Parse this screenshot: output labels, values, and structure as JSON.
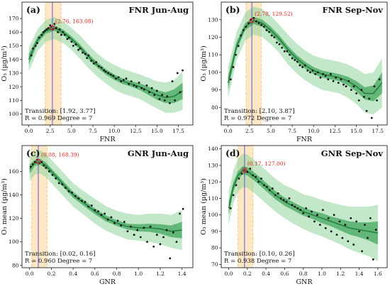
{
  "colors": {
    "band": "#fbc97d",
    "outer_ci": "#8fd49c",
    "inner_ci": "#2f9e4f",
    "fit_line": "#1f7a3a",
    "points": "#111111",
    "vline": "#5b5bd6",
    "peak_marker": "#e0231a"
  },
  "chart_data": [
    {
      "type": "scatter",
      "label": "(a)",
      "title": "FNR Jun-Aug",
      "xlabel": "FNR",
      "ylabel": "O₃ (µg/m³)",
      "xlim": [
        -0.8,
        19.2
      ],
      "ylim": [
        92,
        182
      ],
      "xticks": [
        0.0,
        2.5,
        5.0,
        7.5,
        10.0,
        12.5,
        15.0,
        17.5
      ],
      "xtick_labels": [
        "0.0",
        "2.5",
        "5.0",
        "7.5",
        "10.0",
        "12.5",
        "15.0",
        "17.5"
      ],
      "yticks": [
        100,
        110,
        120,
        130,
        140,
        150,
        160,
        170
      ],
      "ytick_labels": [
        "100",
        "110",
        "120",
        "130",
        "140",
        "150",
        "160",
        "170"
      ],
      "transition_range": [
        1.92,
        3.77
      ],
      "peak": [
        2.76,
        163.08
      ],
      "peak_label": "(2.76, 163.08)",
      "transition_text": "Transition: [1.92, 3.77]",
      "r_text": "R = 0.969 Degree = 7",
      "fit": {
        "x": [
          0,
          1,
          2,
          3,
          4,
          5,
          6,
          7,
          8,
          9,
          10,
          11,
          12,
          13,
          14,
          15,
          16,
          17,
          18
        ],
        "y": [
          140,
          154,
          161,
          163,
          160,
          155,
          149,
          142,
          136,
          131,
          127,
          124,
          122,
          120,
          117,
          114,
          112,
          113,
          117
        ]
      },
      "ci_inner": [
        4,
        2.5,
        2,
        2,
        2,
        2,
        2,
        2,
        2,
        2,
        2,
        2,
        2,
        2.5,
        3,
        3.5,
        4,
        5,
        6
      ],
      "ci_outer": [
        9,
        8,
        8,
        8,
        8,
        8,
        8.5,
        8.5,
        8.5,
        8.5,
        9,
        9,
        9,
        9,
        9.5,
        10,
        11,
        12,
        14
      ],
      "points": {
        "x": [
          0.3,
          0.5,
          0.8,
          1.0,
          1.2,
          1.5,
          1.7,
          1.9,
          2.1,
          2.3,
          2.5,
          2.6,
          2.8,
          3.0,
          3.2,
          3.4,
          3.6,
          3.8,
          4.0,
          4.2,
          4.5,
          4.7,
          5.0,
          5.2,
          5.5,
          5.8,
          6.0,
          6.3,
          6.6,
          6.8,
          7.0,
          7.3,
          7.6,
          7.9,
          8.2,
          8.5,
          8.8,
          9.0,
          9.3,
          9.6,
          9.9,
          10.2,
          10.5,
          10.8,
          11.1,
          11.4,
          11.7,
          12.0,
          12.3,
          12.6,
          12.9,
          13.2,
          13.5,
          13.8,
          14.1,
          14.4,
          14.7,
          15.0,
          15.3,
          15.6,
          15.9,
          16.2,
          16.5,
          16.8,
          17.1,
          17.4,
          17.7,
          18.0
        ],
        "y": [
          143,
          148,
          150,
          152,
          156,
          158,
          160,
          161,
          162,
          163,
          165,
          164,
          162,
          166,
          163,
          160,
          162,
          158,
          160,
          158,
          155,
          156,
          153,
          150,
          151,
          147,
          148,
          145,
          144,
          141,
          143,
          139,
          137,
          138,
          135,
          134,
          132,
          131,
          130,
          129,
          128,
          126,
          127,
          124,
          125,
          126,
          122,
          124,
          121,
          120,
          123,
          119,
          118,
          121,
          116,
          119,
          114,
          117,
          111,
          114,
          110,
          113,
          108,
          124,
          110,
          130,
          116,
          132
        ]
      }
    },
    {
      "type": "scatter",
      "label": "(b)",
      "title": "FNR Sep-Nov",
      "xlabel": "FNR",
      "ylabel": "O₃ (µg/m³)",
      "xlim": [
        -0.8,
        18.6
      ],
      "ylim": [
        70,
        140
      ],
      "xticks": [
        0.0,
        2.5,
        5.0,
        7.5,
        10.0,
        12.5,
        15.0,
        17.5
      ],
      "xtick_labels": [
        "0.0",
        "2.5",
        "5.0",
        "7.5",
        "10.0",
        "12.5",
        "15.0",
        "17.5"
      ],
      "yticks": [
        80,
        90,
        100,
        110,
        120,
        130
      ],
      "ytick_labels": [
        "80",
        "90",
        "100",
        "110",
        "120",
        "130"
      ],
      "transition_range": [
        2.1,
        3.87
      ],
      "peak": [
        2.78,
        129.52
      ],
      "peak_label": "(2.78, 129.52)",
      "transition_text": "Transition: [2.10, 3.87]",
      "r_text": "R = 0.972 Degree = 7",
      "fit": {
        "x": [
          0,
          1,
          2,
          3,
          4,
          5,
          6,
          7,
          8,
          9,
          10,
          11,
          12,
          13,
          14,
          15,
          16,
          17,
          18
        ],
        "y": [
          94,
          115,
          126,
          129.5,
          128,
          124,
          119,
          113,
          108,
          104,
          101,
          99,
          98,
          97,
          95,
          92,
          88,
          88,
          94
        ]
      },
      "ci_inner": [
        4,
        2.5,
        2,
        2,
        2,
        2,
        2,
        2,
        2,
        2,
        2,
        2,
        2,
        2,
        2.5,
        3,
        3.5,
        4.5,
        6
      ],
      "ci_outer": [
        9,
        8,
        8,
        8,
        8,
        8,
        8,
        8.5,
        8.5,
        8.5,
        8.5,
        9,
        9,
        9,
        9.5,
        10,
        11,
        12,
        14
      ],
      "points": {
        "x": [
          0.3,
          0.6,
          0.9,
          1.2,
          1.5,
          1.8,
          2.1,
          2.4,
          2.7,
          3.0,
          3.3,
          3.6,
          3.9,
          4.2,
          4.5,
          4.8,
          5.1,
          5.4,
          5.7,
          6.0,
          6.3,
          6.6,
          6.9,
          7.2,
          7.5,
          7.8,
          8.1,
          8.4,
          8.7,
          9.0,
          9.3,
          9.6,
          9.9,
          10.2,
          10.5,
          10.8,
          11.1,
          11.4,
          11.7,
          12.0,
          12.3,
          12.6,
          12.9,
          13.2,
          13.5,
          13.8,
          14.1,
          14.4,
          14.7,
          15.0,
          15.3,
          15.6,
          15.9,
          16.2,
          16.5,
          16.8,
          17.1,
          17.4,
          17.7
        ],
        "y": [
          96,
          103,
          110,
          115,
          121,
          124,
          126,
          128,
          130,
          131,
          129,
          128,
          127,
          126,
          124,
          123,
          121,
          120,
          117,
          116,
          114,
          112,
          112,
          110,
          108,
          107,
          106,
          104,
          103,
          104,
          101,
          100,
          101,
          99,
          100,
          97,
          99,
          98,
          96,
          99,
          95,
          97,
          94,
          96,
          93,
          92,
          95,
          90,
          92,
          88,
          84,
          90,
          86,
          78,
          85,
          74,
          92,
          84,
          96
        ]
      }
    },
    {
      "type": "scatter",
      "label": "(c)",
      "title": "GNR Jun-Aug",
      "xlabel": "GNR",
      "ylabel": "O₃ mean (µg/m³)",
      "xlim": [
        -0.07,
        1.5
      ],
      "ylim": [
        78,
        182
      ],
      "xticks": [
        0.0,
        0.2,
        0.4,
        0.6,
        0.8,
        1.0,
        1.2,
        1.4
      ],
      "xtick_labels": [
        "0.0",
        "0.2",
        "0.4",
        "0.6",
        "0.8",
        "1.0",
        "1.2",
        "1.4"
      ],
      "yticks": [
        80,
        100,
        120,
        140,
        160
      ],
      "ytick_labels": [
        "80",
        "100",
        "120",
        "140",
        "160"
      ],
      "transition_range": [
        0.02,
        0.16
      ],
      "peak": [
        0.08,
        168.39
      ],
      "peak_label": "(0.08, 168.39)",
      "transition_text": "Transition: [0.02, 0.16]",
      "r_text": "R = 0.960 Degree = 7",
      "fit": {
        "x": [
          0.0,
          0.05,
          0.1,
          0.15,
          0.2,
          0.3,
          0.4,
          0.5,
          0.6,
          0.7,
          0.8,
          0.9,
          1.0,
          1.1,
          1.2,
          1.3,
          1.4
        ],
        "y": [
          162,
          167.5,
          168,
          165,
          160,
          150,
          140,
          133,
          126,
          120,
          116,
          113,
          112,
          112,
          111,
          109,
          110
        ]
      },
      "ci_inner": [
        4,
        2.5,
        2.5,
        2.5,
        2.5,
        2.5,
        2.5,
        2.5,
        2.5,
        2.5,
        2.5,
        2.5,
        3,
        3.5,
        4,
        5,
        7
      ],
      "ci_outer": [
        10,
        10,
        10,
        10,
        10,
        10,
        10,
        10,
        10.5,
        10.5,
        10.5,
        11,
        11,
        12,
        13,
        14,
        17
      ],
      "points": {
        "x": [
          0.01,
          0.03,
          0.05,
          0.07,
          0.09,
          0.11,
          0.13,
          0.15,
          0.18,
          0.21,
          0.24,
          0.27,
          0.3,
          0.33,
          0.36,
          0.39,
          0.42,
          0.45,
          0.48,
          0.51,
          0.54,
          0.57,
          0.6,
          0.63,
          0.66,
          0.69,
          0.72,
          0.75,
          0.78,
          0.81,
          0.84,
          0.87,
          0.9,
          0.93,
          0.96,
          0.99,
          1.02,
          1.05,
          1.08,
          1.11,
          1.14,
          1.17,
          1.2,
          1.23,
          1.26,
          1.29,
          1.32,
          1.35,
          1.38,
          1.41
        ],
        "y": [
          164,
          166,
          168,
          170,
          167,
          168,
          165,
          163,
          160,
          157,
          154,
          150,
          149,
          146,
          143,
          142,
          139,
          137,
          135,
          134,
          130,
          131,
          127,
          126,
          123,
          124,
          119,
          121,
          116,
          118,
          114,
          117,
          109,
          113,
          106,
          110,
          104,
          112,
          100,
          113,
          96,
          106,
          98,
          104,
          110,
          86,
          108,
          100,
          124,
          128
        ]
      }
    },
    {
      "type": "scatter",
      "label": "(d)",
      "title": "GNR Sep-Nov",
      "xlabel": "GNR",
      "ylabel": "O₃ mean (µg/m³)",
      "xlim": [
        -0.08,
        1.7
      ],
      "ylim": [
        68,
        142
      ],
      "xticks": [
        0.0,
        0.2,
        0.4,
        0.6,
        0.8,
        1.0,
        1.2,
        1.4,
        1.6
      ],
      "xtick_labels": [
        "0.0",
        "0.2",
        "0.4",
        "0.6",
        "0.8",
        "1.0",
        "1.2",
        "1.4",
        "1.6"
      ],
      "yticks": [
        70,
        80,
        90,
        100,
        110,
        120,
        130,
        140
      ],
      "ytick_labels": [
        "70",
        "80",
        "90",
        "100",
        "110",
        "120",
        "130",
        "140"
      ],
      "transition_range": [
        0.1,
        0.26
      ],
      "peak": [
        0.17,
        127.0
      ],
      "peak_label": "(0.17, 127.00)",
      "transition_text": "Transition: [0.10, 0.26]",
      "r_text": "R = 0.938 Degree = 7",
      "fit": {
        "x": [
          0.0,
          0.05,
          0.1,
          0.15,
          0.2,
          0.3,
          0.4,
          0.5,
          0.6,
          0.7,
          0.8,
          0.9,
          1.0,
          1.1,
          1.2,
          1.3,
          1.4,
          1.5,
          1.6
        ],
        "y": [
          104,
          117,
          124,
          127,
          126.5,
          122,
          117,
          112,
          108,
          105,
          102,
          100,
          98,
          96,
          94,
          92,
          91,
          90,
          89
        ]
      },
      "ci_inner": [
        4,
        3,
        2.5,
        2.5,
        2.5,
        2.5,
        2.5,
        2.5,
        2.5,
        2.5,
        2.5,
        2.5,
        3,
        3,
        3.5,
        4,
        4.5,
        5.5,
        7
      ],
      "ci_outer": [
        10,
        10,
        10,
        10,
        10,
        10,
        10,
        10,
        10,
        10.5,
        10.5,
        11,
        11,
        11.5,
        12,
        13,
        14,
        15,
        17
      ],
      "points": {
        "x": [
          0.02,
          0.05,
          0.08,
          0.11,
          0.14,
          0.17,
          0.2,
          0.23,
          0.26,
          0.29,
          0.32,
          0.35,
          0.38,
          0.41,
          0.44,
          0.47,
          0.5,
          0.53,
          0.56,
          0.59,
          0.62,
          0.65,
          0.68,
          0.71,
          0.74,
          0.77,
          0.8,
          0.83,
          0.86,
          0.89,
          0.92,
          0.95,
          0.98,
          1.01,
          1.04,
          1.07,
          1.1,
          1.13,
          1.16,
          1.19,
          1.22,
          1.25,
          1.28,
          1.31,
          1.34,
          1.37,
          1.4,
          1.43,
          1.46,
          1.49,
          1.52,
          1.55,
          1.58
        ],
        "y": [
          104,
          112,
          118,
          122,
          125,
          127,
          126,
          128,
          124,
          123,
          120,
          122,
          118,
          117,
          115,
          116,
          112,
          113,
          110,
          109,
          108,
          110,
          106,
          105,
          104,
          103,
          101,
          104,
          99,
          102,
          96,
          100,
          94,
          103,
          92,
          98,
          90,
          100,
          88,
          96,
          86,
          94,
          84,
          98,
          82,
          96,
          90,
          78,
          94,
          86,
          98,
          73,
          91
        ]
      }
    }
  ]
}
